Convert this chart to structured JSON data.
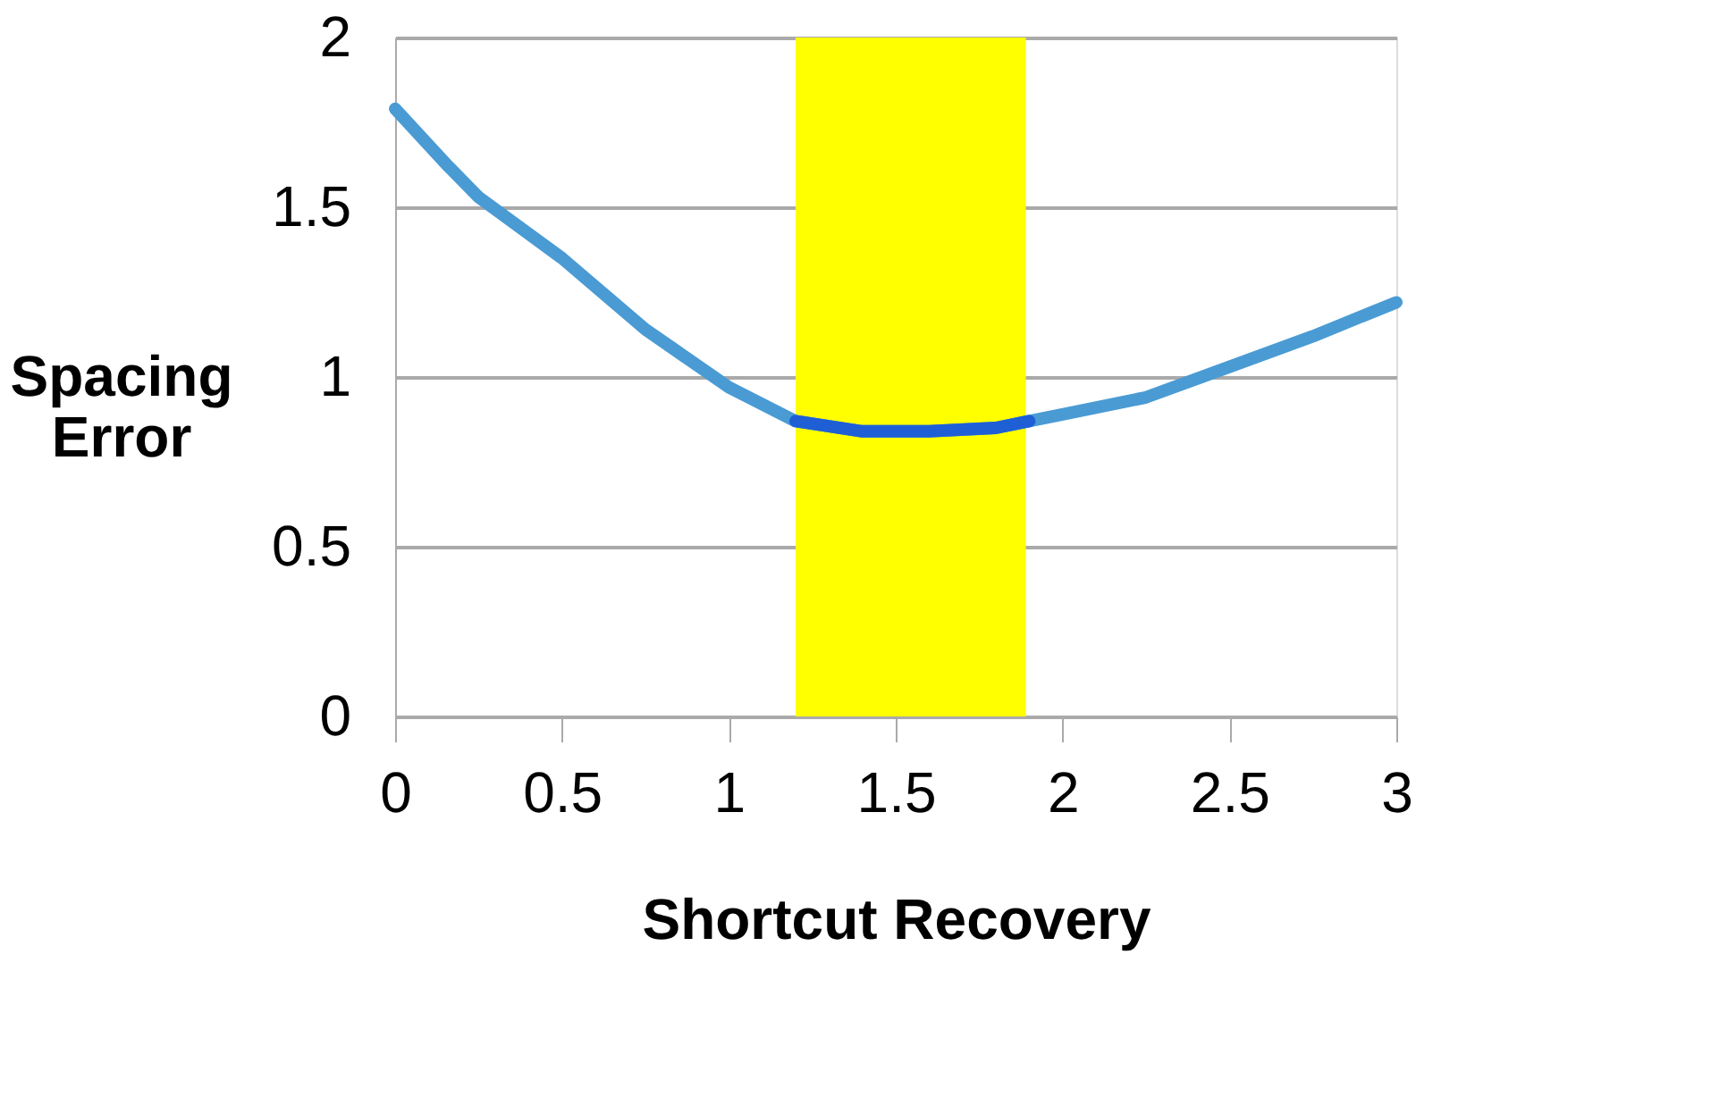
{
  "chart_data": {
    "type": "line",
    "xlabel": "Shortcut Recovery",
    "ylabel": "Spacing Error",
    "xlim": [
      0,
      3
    ],
    "xticks": [
      0,
      0.5,
      1,
      1.5,
      2,
      2.5,
      3
    ],
    "ylim": [
      0,
      2
    ],
    "yticks": [
      0,
      0.5,
      1,
      1.5,
      2
    ],
    "grid": "y",
    "line_style": "solid",
    "bands": [
      {
        "axis": "x",
        "from": 1.2,
        "to": 1.89,
        "color": "#ffff00"
      }
    ],
    "series": [
      {
        "color": "#4a9bd4",
        "x": [
          0,
          0.16,
          0.25,
          0.5,
          0.75,
          1.0,
          1.2,
          1.4,
          1.6,
          1.8,
          1.9,
          2.0,
          2.25,
          2.5,
          2.75,
          3.0
        ],
        "values": [
          1.79,
          1.62,
          1.53,
          1.35,
          1.14,
          0.97,
          0.87,
          0.84,
          0.84,
          0.85,
          0.87,
          0.89,
          0.94,
          1.03,
          1.12,
          1.22
        ]
      },
      {
        "color": "#1f5fd6",
        "x": [
          1.2,
          1.4,
          1.6,
          1.8,
          1.9
        ],
        "values": [
          0.87,
          0.84,
          0.84,
          0.85,
          0.87
        ]
      }
    ]
  }
}
